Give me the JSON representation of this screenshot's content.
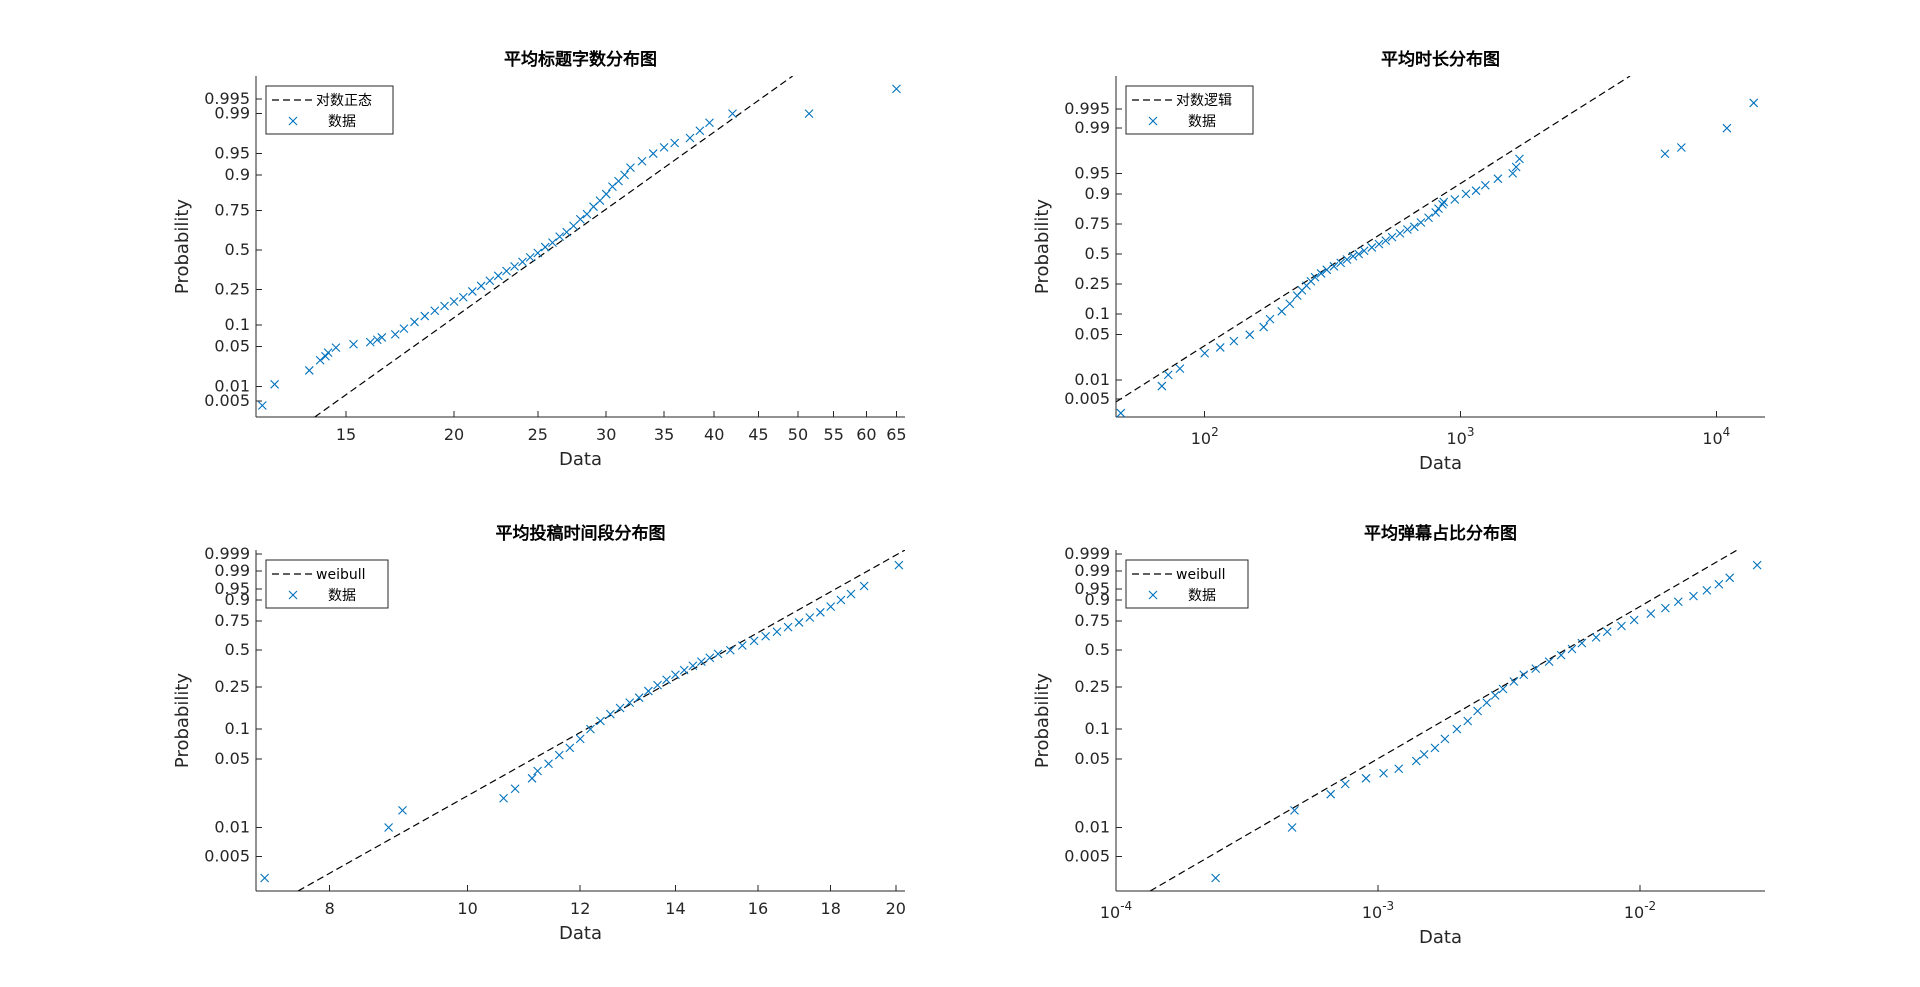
{
  "colors": {
    "marker": "#0072BD",
    "fit_line": "#000000",
    "axis": "#262626"
  },
  "chart_data": [
    {
      "type": "scatter",
      "title": "平均标题字数分布图",
      "xlabel": "Data",
      "ylabel": "Probability",
      "x_scale": "log",
      "y_scale": "lognormal-probability",
      "xlim": [
        11.8,
        66.5
      ],
      "ylim": [
        0.0022,
        0.9985
      ],
      "x_ticks": [
        15,
        20,
        25,
        30,
        35,
        40,
        45,
        50,
        55,
        60,
        65
      ],
      "y_ticks": [
        0.005,
        0.01,
        0.05,
        0.1,
        0.25,
        0.5,
        0.75,
        0.9,
        0.95,
        0.99,
        0.995
      ],
      "legend": {
        "position": "top-left",
        "entries": [
          {
            "label": "对数正态",
            "style": "dashed-line"
          },
          {
            "label": "数据",
            "style": "x-marker"
          }
        ]
      },
      "fit_line": {
        "x": [
          13.8,
          49.3
        ],
        "y": [
          0.0022,
          0.9985
        ]
      },
      "series": [
        {
          "x": [
            12.0,
            12.4,
            13.6,
            14.0,
            14.2,
            14.3,
            14.6,
            15.3,
            16.0,
            16.3,
            16.5,
            17.1,
            17.5,
            18.0,
            18.5,
            19.0,
            19.5,
            20.0,
            20.5,
            21.0,
            21.5,
            22.0,
            22.5,
            23.0,
            23.5,
            24.0,
            24.5,
            25.0,
            25.5,
            26.0,
            26.5,
            27.0,
            27.5,
            28.0,
            28.5,
            29.0,
            29.5,
            30.0,
            30.5,
            31.0,
            31.5,
            32.0,
            33.0,
            34.0,
            35.0,
            36.0,
            37.5,
            38.5,
            39.5,
            42.0,
            51.5,
            65.0
          ],
          "y": [
            0.004,
            0.011,
            0.02,
            0.03,
            0.035,
            0.04,
            0.048,
            0.054,
            0.058,
            0.063,
            0.068,
            0.075,
            0.09,
            0.11,
            0.13,
            0.15,
            0.17,
            0.19,
            0.21,
            0.24,
            0.27,
            0.3,
            0.33,
            0.36,
            0.39,
            0.42,
            0.45,
            0.48,
            0.52,
            0.55,
            0.59,
            0.62,
            0.66,
            0.7,
            0.73,
            0.77,
            0.8,
            0.83,
            0.86,
            0.88,
            0.9,
            0.92,
            0.935,
            0.95,
            0.96,
            0.966,
            0.972,
            0.979,
            0.985,
            0.99,
            0.99,
            0.997
          ]
        }
      ]
    },
    {
      "type": "scatter",
      "title": "平均时长分布图",
      "xlabel": "Data",
      "ylabel": "Probability",
      "x_scale": "log",
      "y_scale": "loglogistic-probability",
      "xlim": [
        45,
        15500
      ],
      "ylim": [
        0.0026,
        0.9985
      ],
      "x_ticks": [
        100,
        1000,
        10000
      ],
      "x_tick_labels": [
        {
          "base": "10",
          "exp": "2"
        },
        {
          "base": "10",
          "exp": "3"
        },
        {
          "base": "10",
          "exp": "4"
        }
      ],
      "y_ticks": [
        0.005,
        0.01,
        0.05,
        0.1,
        0.25,
        0.5,
        0.75,
        0.9,
        0.95,
        0.99,
        0.995
      ],
      "legend": {
        "position": "top-left",
        "entries": [
          {
            "label": "对数逻辑",
            "style": "dashed-line"
          },
          {
            "label": "数据",
            "style": "x-marker"
          }
        ]
      },
      "fit_line": {
        "x": [
          45,
          4600
        ],
        "y": [
          0.0045,
          0.9985
        ]
      },
      "series": [
        {
          "x": [
            47,
            68,
            72,
            80,
            100,
            115,
            130,
            150,
            170,
            180,
            200,
            215,
            230,
            240,
            250,
            260,
            270,
            285,
            300,
            320,
            340,
            360,
            380,
            400,
            420,
            450,
            480,
            510,
            540,
            580,
            620,
            660,
            700,
            750,
            800,
            820,
            850,
            860,
            950,
            1050,
            1150,
            1250,
            1400,
            1600,
            1650,
            1700,
            6300,
            7300,
            11000,
            14000
          ],
          "y": [
            0.003,
            0.008,
            0.012,
            0.015,
            0.026,
            0.032,
            0.04,
            0.05,
            0.065,
            0.085,
            0.11,
            0.14,
            0.18,
            0.21,
            0.24,
            0.27,
            0.3,
            0.33,
            0.36,
            0.39,
            0.42,
            0.45,
            0.48,
            0.5,
            0.53,
            0.56,
            0.59,
            0.62,
            0.65,
            0.68,
            0.71,
            0.73,
            0.76,
            0.79,
            0.82,
            0.84,
            0.86,
            0.87,
            0.88,
            0.9,
            0.91,
            0.925,
            0.94,
            0.95,
            0.96,
            0.97,
            0.975,
            0.98,
            0.99,
            0.996
          ]
        }
      ]
    },
    {
      "type": "scatter",
      "title": "平均投稿时间段分布图",
      "xlabel": "Data",
      "ylabel": "Probability",
      "x_scale": "log",
      "y_scale": "weibull-probability",
      "xlim": [
        7.1,
        20.3
      ],
      "ylim": [
        0.0022,
        0.9995
      ],
      "x_ticks": [
        8,
        10,
        12,
        14,
        16,
        18,
        20
      ],
      "y_ticks": [
        0.005,
        0.01,
        0.05,
        0.1,
        0.25,
        0.5,
        0.75,
        0.9,
        0.95,
        0.99,
        0.999
      ],
      "legend": {
        "position": "top-left",
        "entries": [
          {
            "label": "weibull",
            "style": "dashed-line"
          },
          {
            "label": "数据",
            "style": "x-marker"
          }
        ]
      },
      "fit_line": {
        "x": [
          7.6,
          20.3
        ],
        "y": [
          0.0022,
          0.9995
        ]
      },
      "series": [
        {
          "x": [
            7.2,
            8.8,
            9.0,
            10.6,
            10.8,
            11.1,
            11.2,
            11.4,
            11.6,
            11.8,
            12.0,
            12.2,
            12.4,
            12.6,
            12.8,
            13.0,
            13.2,
            13.4,
            13.6,
            13.8,
            14.0,
            14.2,
            14.4,
            14.6,
            14.8,
            15.0,
            15.3,
            15.6,
            15.9,
            16.2,
            16.5,
            16.8,
            17.1,
            17.4,
            17.7,
            18.0,
            18.3,
            18.6,
            19.0,
            20.1
          ],
          "y": [
            0.003,
            0.01,
            0.015,
            0.02,
            0.025,
            0.032,
            0.038,
            0.045,
            0.055,
            0.065,
            0.08,
            0.1,
            0.12,
            0.14,
            0.16,
            0.18,
            0.2,
            0.23,
            0.26,
            0.29,
            0.32,
            0.35,
            0.38,
            0.41,
            0.44,
            0.47,
            0.5,
            0.54,
            0.58,
            0.62,
            0.66,
            0.7,
            0.74,
            0.78,
            0.82,
            0.86,
            0.9,
            0.93,
            0.96,
            0.995
          ]
        }
      ]
    },
    {
      "type": "scatter",
      "title": "平均弹幕占比分布图",
      "xlabel": "Data",
      "ylabel": "Probability",
      "x_scale": "log",
      "y_scale": "weibull-probability",
      "xlim": [
        0.0001,
        0.03
      ],
      "ylim": [
        0.0022,
        0.9995
      ],
      "x_ticks": [
        0.0001,
        0.001,
        0.01
      ],
      "x_tick_labels": [
        {
          "base": "10",
          "exp": "-4"
        },
        {
          "base": "10",
          "exp": "-3"
        },
        {
          "base": "10",
          "exp": "-2"
        }
      ],
      "y_ticks": [
        0.005,
        0.01,
        0.05,
        0.1,
        0.25,
        0.5,
        0.75,
        0.9,
        0.95,
        0.99,
        0.999
      ],
      "legend": {
        "position": "top-left",
        "entries": [
          {
            "label": "weibull",
            "style": "dashed-line"
          },
          {
            "label": "数据",
            "style": "x-marker"
          }
        ]
      },
      "fit_line": {
        "x": [
          0.000135,
          0.0235
        ],
        "y": [
          0.0022,
          0.9995
        ]
      },
      "series": [
        {
          "x": [
            0.00024,
            0.00047,
            0.00048,
            0.00066,
            0.00075,
            0.0009,
            0.00105,
            0.0012,
            0.0014,
            0.0015,
            0.00165,
            0.0018,
            0.002,
            0.0022,
            0.0024,
            0.0026,
            0.0028,
            0.003,
            0.0033,
            0.0036,
            0.004,
            0.0045,
            0.005,
            0.0055,
            0.006,
            0.0068,
            0.0075,
            0.0085,
            0.0095,
            0.011,
            0.0125,
            0.014,
            0.016,
            0.018,
            0.02,
            0.022,
            0.028
          ],
          "y": [
            0.003,
            0.01,
            0.015,
            0.022,
            0.028,
            0.032,
            0.036,
            0.04,
            0.048,
            0.056,
            0.065,
            0.08,
            0.1,
            0.12,
            0.15,
            0.18,
            0.21,
            0.24,
            0.28,
            0.32,
            0.36,
            0.41,
            0.46,
            0.51,
            0.56,
            0.61,
            0.66,
            0.71,
            0.76,
            0.81,
            0.85,
            0.89,
            0.92,
            0.945,
            0.965,
            0.98,
            0.995
          ]
        }
      ]
    }
  ]
}
